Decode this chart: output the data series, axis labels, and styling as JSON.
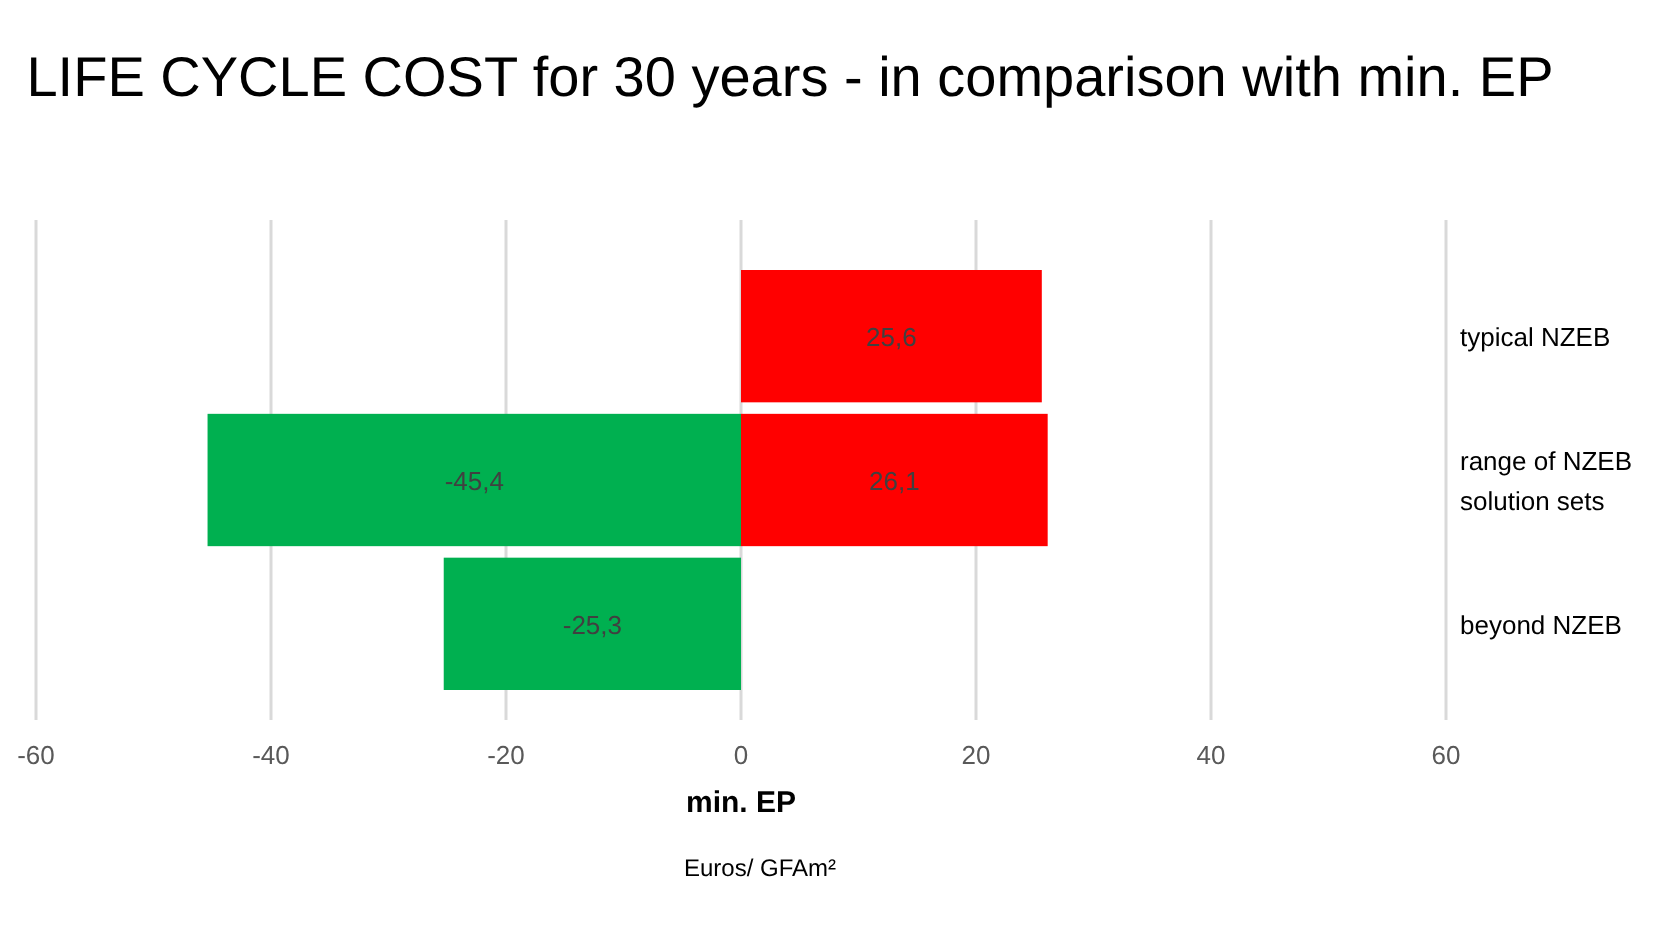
{
  "chart_data": {
    "type": "bar",
    "orientation": "horizontal",
    "stacked": true,
    "title": "LIFE CYCLE COST for 30 years - in comparison with min. EP",
    "xlabel": "min. EP",
    "annotations": [
      "Euros/ GFAm²"
    ],
    "categories": [
      "typical NZEB",
      "range of NZEB solution sets",
      "beyond NZEB"
    ],
    "series": [
      {
        "color": "#ff0000",
        "values": [
          25.6,
          26.1,
          null
        ],
        "value_labels": [
          "25,6",
          "26,1",
          null
        ]
      },
      {
        "color": "#00b050",
        "values": [
          null,
          -45.4,
          -25.3
        ],
        "value_labels": [
          null,
          "-45,4",
          "-25,3"
        ]
      }
    ],
    "xlim": [
      -60,
      60
    ],
    "xticks": [
      -60,
      -40,
      -20,
      0,
      20,
      40,
      60
    ],
    "grid": "x"
  }
}
